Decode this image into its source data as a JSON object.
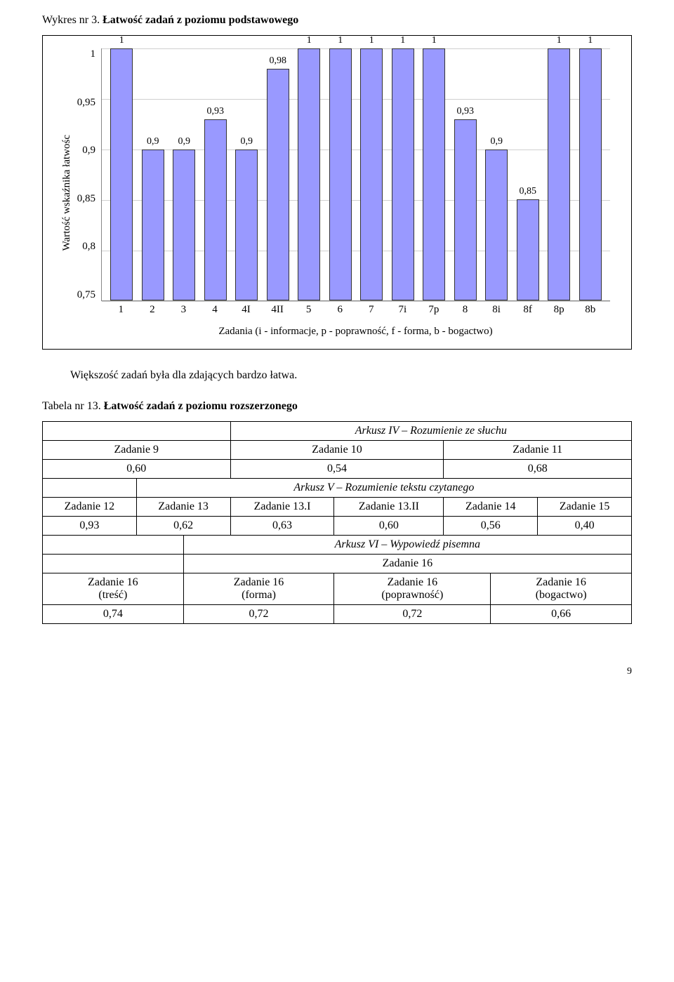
{
  "chart_caption": {
    "prefix": "Wykres nr 3. ",
    "title": "Łatwość zadań z poziomu podstawowego"
  },
  "chart": {
    "type": "bar",
    "y_axis_label": "Wartość wskaźnika łatwośc",
    "categories": [
      "1",
      "2",
      "3",
      "4",
      "4I",
      "4II",
      "5",
      "6",
      "7",
      "7i",
      "7p",
      "8",
      "8i",
      "8f",
      "8p",
      "8b"
    ],
    "values": [
      1,
      0.9,
      0.9,
      0.93,
      0.9,
      0.98,
      1,
      1,
      1,
      1,
      1,
      0.93,
      0.9,
      0.85,
      1,
      1
    ],
    "value_labels": [
      "1",
      "0,9",
      "0,9",
      "0,93",
      "0,9",
      "0,98",
      "1",
      "1",
      "1",
      "1",
      "1",
      "0,93",
      "0,9",
      "0,85",
      "1",
      "1"
    ],
    "y_ticks": [
      "1",
      "0,95",
      "0,9",
      "0,85",
      "0,8",
      "0,75"
    ],
    "ylim": [
      0.75,
      1.0
    ],
    "bar_color": "#9999ff",
    "bar_border": "#333333",
    "grid_color": "#d0d0d0",
    "background": "#ffffff",
    "x_note": "Zadania (i - informacje, p - poprawność, f - forma, b - bogactwo)"
  },
  "body_text": "Większość zadań była dla zdających bardzo łatwa.",
  "table_caption": {
    "prefix": "Tabela nr 13. ",
    "title": "Łatwość zadań z poziomu rozszerzonego"
  },
  "table": {
    "section1": {
      "header": "Arkusz IV – Rozumienie ze słuchu",
      "cols": [
        "Zadanie 9",
        "Zadanie 10",
        "Zadanie 11"
      ],
      "vals": [
        "0,60",
        "0,54",
        "0,68"
      ]
    },
    "section2": {
      "header": "Arkusz V – Rozumienie tekstu czytanego",
      "cols": [
        "Zadanie 12",
        "Zadanie 13",
        "Zadanie 13.I",
        "Zadanie 13.II",
        "Zadanie 14",
        "Zadanie 15"
      ],
      "vals": [
        "0,93",
        "0,62",
        "0,63",
        "0,60",
        "0,56",
        "0,40"
      ]
    },
    "section3": {
      "header": "Arkusz VI – Wypowiedź pisemna",
      "group": "Zadanie 16",
      "cols": [
        "Zadanie 16\n(treść)",
        "Zadanie 16\n(forma)",
        "Zadanie 16\n(poprawność)",
        "Zadanie 16\n(bogactwo)"
      ],
      "vals": [
        "0,74",
        "0,72",
        "0,72",
        "0,66"
      ]
    }
  },
  "page_number": "9"
}
